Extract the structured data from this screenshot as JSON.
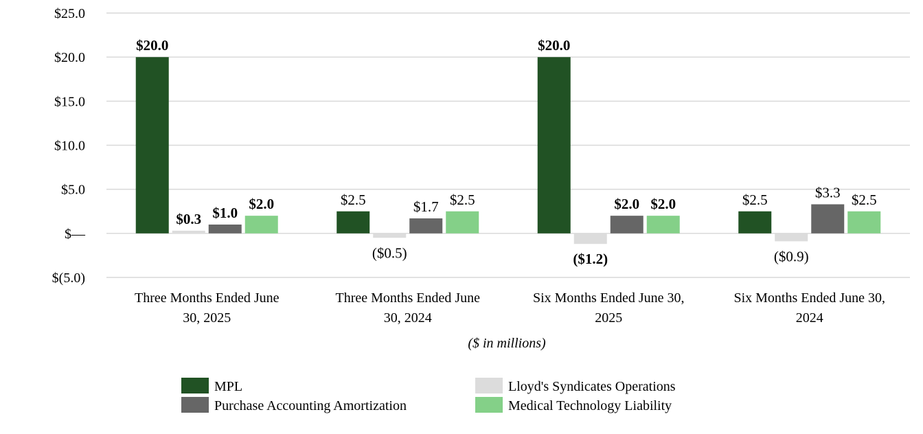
{
  "chart_data": {
    "type": "bar",
    "categories": [
      [
        "Three Months Ended June",
        "30, 2025"
      ],
      [
        "Three Months Ended June",
        "30, 2024"
      ],
      [
        "Six Months Ended June 30,",
        "2025"
      ],
      [
        "Six Months Ended June 30,",
        "2024"
      ]
    ],
    "series": [
      {
        "name": "MPL",
        "color": "#215224",
        "values": [
          20.0,
          2.5,
          20.0,
          2.5
        ],
        "labels": [
          "$20.0",
          "$2.5",
          "$20.0",
          "$2.5"
        ]
      },
      {
        "name": "Lloyd's Syndicates Operations",
        "color": "#dcdcdc",
        "values": [
          0.3,
          -0.5,
          -1.2,
          -0.9
        ],
        "labels": [
          "$0.3",
          "($0.5)",
          "($1.2)",
          "($0.9)"
        ]
      },
      {
        "name": "Purchase Accounting Amortization",
        "color": "#666666",
        "values": [
          1.0,
          1.7,
          2.0,
          3.3
        ],
        "labels": [
          "$1.0",
          "$1.7",
          "$2.0",
          "$3.3"
        ]
      },
      {
        "name": "Medical Technology Liability",
        "color": "#84d088",
        "values": [
          2.0,
          2.5,
          2.0,
          2.5
        ],
        "labels": [
          "$2.0",
          "$2.5",
          "$2.0",
          "$2.5"
        ]
      }
    ],
    "bold_labels_by_category": [
      true,
      false,
      true,
      false
    ],
    "ylim": [
      -5,
      25
    ],
    "yticks": [
      25,
      20,
      15,
      10,
      5,
      0,
      -5
    ],
    "ytick_labels": [
      "$25.0",
      "$20.0",
      "$15.0",
      "$10.0",
      "$5.0",
      "$—",
      "$(5.0)"
    ],
    "xlabel": "($ in millions)",
    "ylabel": "",
    "title": "",
    "grid": true,
    "legend_position": "bottom"
  }
}
